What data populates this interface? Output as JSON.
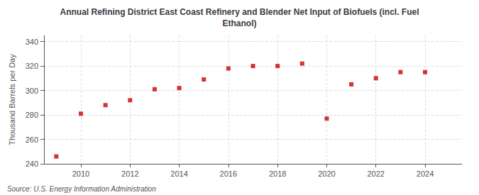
{
  "chart_data": {
    "type": "scatter",
    "title": "Annual Refining District East Coast Refinery and Blender Net Input of Biofuels (incl. Fuel\nEthanol)",
    "ylabel": "Thousand Barrels per Day",
    "source": "Source: U.S. Energy Information Administration",
    "x": [
      2009,
      2010,
      2011,
      2012,
      2013,
      2014,
      2015,
      2016,
      2017,
      2018,
      2019,
      2020,
      2021,
      2022,
      2023,
      2024
    ],
    "values": [
      246,
      281,
      288,
      292,
      301,
      302,
      309,
      318,
      320,
      320,
      322,
      277,
      305,
      310,
      315,
      315
    ],
    "color": "#cc0000",
    "marker": "square",
    "grid": true,
    "xlim": [
      2008.5,
      2025.5
    ],
    "xticks": [
      2010,
      2012,
      2014,
      2016,
      2018,
      2020,
      2022,
      2024
    ],
    "ylim": [
      240,
      345
    ],
    "yticks": [
      240,
      260,
      280,
      300,
      320,
      340
    ]
  }
}
